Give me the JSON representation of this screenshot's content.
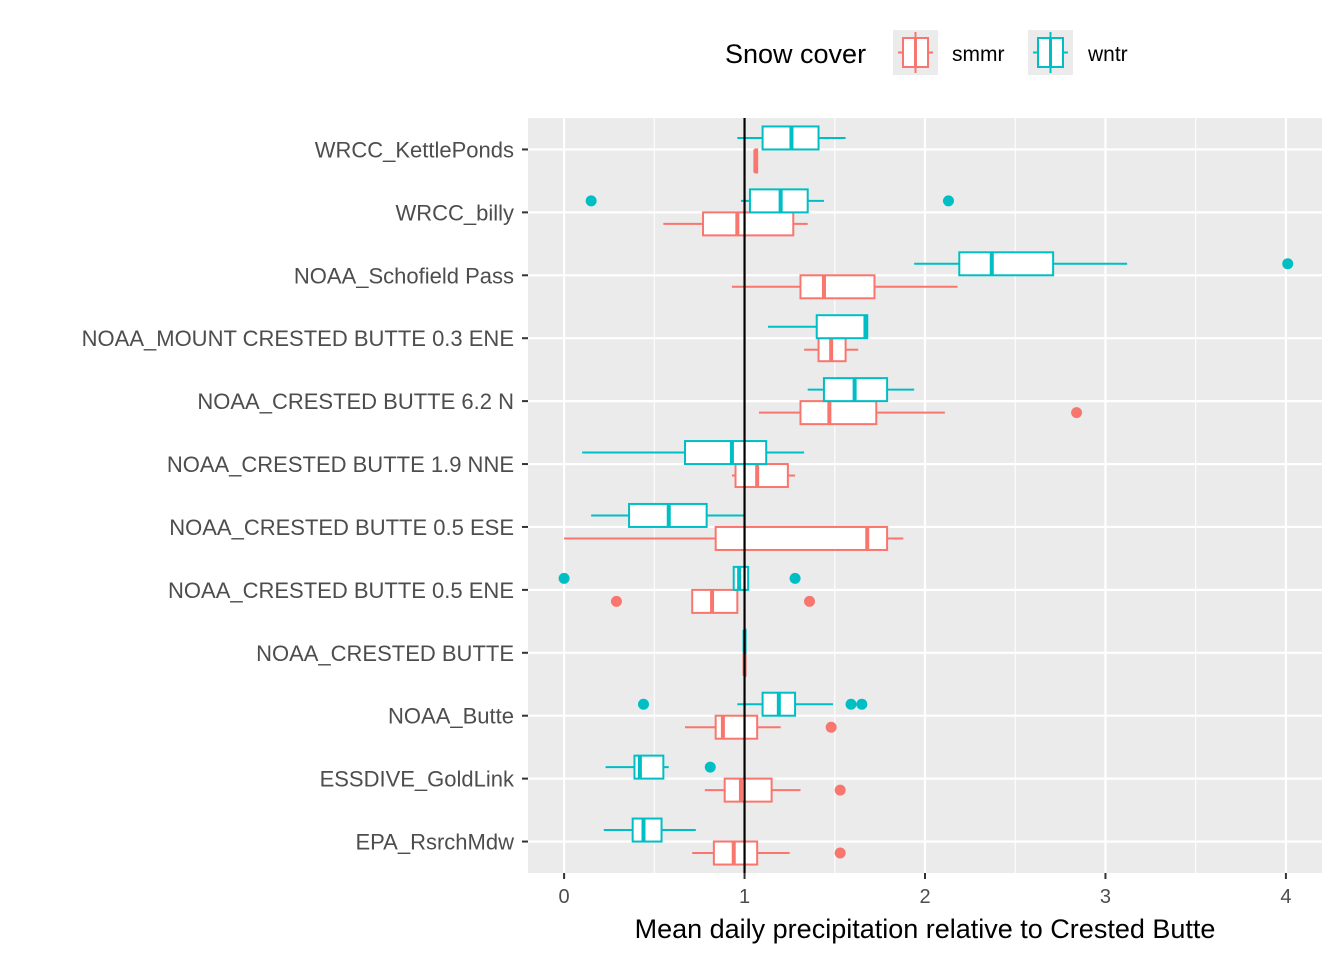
{
  "chart_data": {
    "type": "boxplot",
    "orientation": "horizontal",
    "xlabel": "Mean daily precipitation relative to Crested Butte",
    "ylabel": "",
    "xlim": [
      -0.2,
      4.2
    ],
    "x_ticks": [
      0,
      1,
      2,
      3,
      4
    ],
    "x_tick_labels": [
      "0",
      "1",
      "2",
      "3",
      "4"
    ],
    "reference_line_x": 1,
    "grid": true,
    "legend": {
      "title": "Snow cover",
      "position": "top",
      "entries": [
        {
          "name": "smmr",
          "color": "#F8766D"
        },
        {
          "name": "wntr",
          "color": "#00BFC4"
        }
      ]
    },
    "categories": [
      "WRCC_KettlePonds",
      "WRCC_billy",
      "NOAA_Schofield Pass",
      "NOAA_MOUNT CRESTED BUTTE 0.3 ENE",
      "NOAA_CRESTED BUTTE 6.2 N",
      "NOAA_CRESTED BUTTE 1.9 NNE",
      "NOAA_CRESTED BUTTE 0.5 ESE",
      "NOAA_CRESTED BUTTE 0.5 ENE",
      "NOAA_CRESTED BUTTE",
      "NOAA_Butte",
      "ESSDIVE_GoldLink",
      "EPA_RsrchMdw"
    ],
    "series": [
      {
        "name": "smmr",
        "color": "#F8766D",
        "boxes": [
          {
            "min": 1.06,
            "q1": 1.06,
            "median": 1.06,
            "q3": 1.07,
            "max": 1.07,
            "outliers": []
          },
          {
            "min": 0.55,
            "q1": 0.77,
            "median": 0.96,
            "q3": 1.27,
            "max": 1.35,
            "outliers": []
          },
          {
            "min": 0.93,
            "q1": 1.31,
            "median": 1.44,
            "q3": 1.72,
            "max": 2.18,
            "outliers": []
          },
          {
            "min": 1.33,
            "q1": 1.41,
            "median": 1.48,
            "q3": 1.56,
            "max": 1.63,
            "outliers": []
          },
          {
            "min": 1.08,
            "q1": 1.31,
            "median": 1.47,
            "q3": 1.73,
            "max": 2.11,
            "outliers": [
              2.84
            ]
          },
          {
            "min": 0.93,
            "q1": 0.95,
            "median": 1.07,
            "q3": 1.24,
            "max": 1.28,
            "outliers": []
          },
          {
            "min": 0.0,
            "q1": 0.84,
            "median": 1.68,
            "q3": 1.79,
            "max": 1.88,
            "outliers": []
          },
          {
            "min": 0.71,
            "q1": 0.71,
            "median": 0.82,
            "q3": 0.96,
            "max": 0.96,
            "outliers": [
              0.29,
              1.36
            ]
          },
          {
            "min": 1.0,
            "q1": 1.0,
            "median": 1.0,
            "q3": 1.0,
            "max": 1.0,
            "outliers": []
          },
          {
            "min": 0.67,
            "q1": 0.84,
            "median": 0.88,
            "q3": 1.07,
            "max": 1.2,
            "outliers": [
              1.48
            ]
          },
          {
            "min": 0.78,
            "q1": 0.89,
            "median": 0.98,
            "q3": 1.15,
            "max": 1.31,
            "outliers": [
              1.53
            ]
          },
          {
            "min": 0.71,
            "q1": 0.83,
            "median": 0.94,
            "q3": 1.07,
            "max": 1.25,
            "outliers": [
              1.53
            ]
          }
        ]
      },
      {
        "name": "wntr",
        "color": "#00BFC4",
        "boxes": [
          {
            "min": 0.96,
            "q1": 1.1,
            "median": 1.26,
            "q3": 1.41,
            "max": 1.56,
            "outliers": []
          },
          {
            "min": 0.98,
            "q1": 1.03,
            "median": 1.2,
            "q3": 1.35,
            "max": 1.44,
            "outliers": [
              0.15,
              2.13
            ]
          },
          {
            "min": 1.94,
            "q1": 2.19,
            "median": 2.37,
            "q3": 2.71,
            "max": 3.12,
            "outliers": [
              4.01
            ]
          },
          {
            "min": 1.13,
            "q1": 1.4,
            "median": 1.67,
            "q3": 1.68,
            "max": 1.68,
            "outliers": []
          },
          {
            "min": 1.35,
            "q1": 1.44,
            "median": 1.61,
            "q3": 1.79,
            "max": 1.94,
            "outliers": []
          },
          {
            "min": 0.1,
            "q1": 0.67,
            "median": 0.93,
            "q3": 1.12,
            "max": 1.33,
            "outliers": []
          },
          {
            "min": 0.15,
            "q1": 0.36,
            "median": 0.58,
            "q3": 0.79,
            "max": 1.0,
            "outliers": []
          },
          {
            "min": 0.94,
            "q1": 0.94,
            "median": 0.97,
            "q3": 1.02,
            "max": 1.02,
            "outliers": [
              0.0,
              1.28
            ]
          },
          {
            "min": 1.0,
            "q1": 1.0,
            "median": 1.0,
            "q3": 1.0,
            "max": 1.0,
            "outliers": []
          },
          {
            "min": 0.96,
            "q1": 1.1,
            "median": 1.19,
            "q3": 1.28,
            "max": 1.49,
            "outliers": [
              0.44,
              1.59,
              1.65
            ]
          },
          {
            "min": 0.23,
            "q1": 0.39,
            "median": 0.42,
            "q3": 0.55,
            "max": 0.58,
            "outliers": [
              0.81
            ]
          },
          {
            "min": 0.22,
            "q1": 0.38,
            "median": 0.44,
            "q3": 0.54,
            "max": 0.73,
            "outliers": []
          }
        ]
      }
    ]
  }
}
